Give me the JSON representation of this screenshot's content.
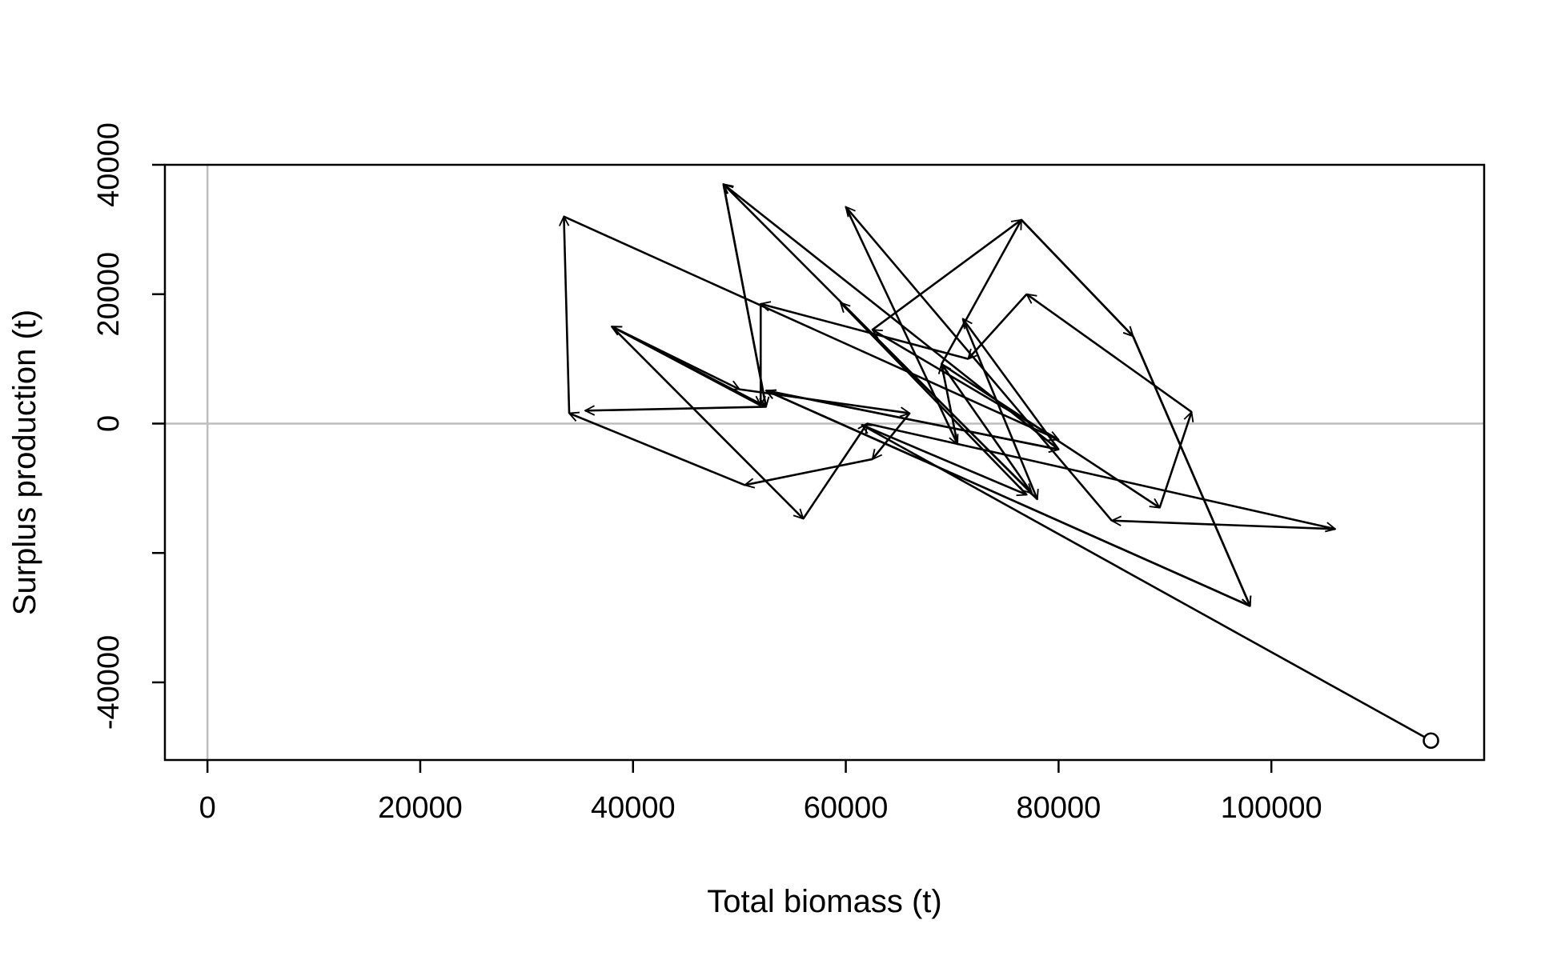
{
  "chart_data": {
    "type": "line",
    "xlabel": "Total biomass (t)",
    "ylabel": "Surplus production (t)",
    "xlim": [
      -4000,
      120000
    ],
    "ylim": [
      -52000,
      40000
    ],
    "x_ticks": [
      0,
      20000,
      40000,
      60000,
      80000,
      100000
    ],
    "x_tick_labels": [
      "0",
      "20000",
      "40000",
      "60000",
      "80000",
      "100000"
    ],
    "y_ticks": [
      -40000,
      -20000,
      0,
      20000,
      40000
    ],
    "y_tick_labels": [
      "-40000",
      "",
      "0",
      "20000",
      "40000"
    ],
    "reference_lines": {
      "x": 0,
      "y": 0
    },
    "colors": {
      "reference_line": "#bebebe",
      "path": "#000000",
      "frame": "#000000"
    },
    "start_marker": "open-circle",
    "series": [
      {
        "style": "arrows",
        "points": [
          {
            "x": 115000,
            "y": -49000
          },
          {
            "x": 61500,
            "y": -200
          },
          {
            "x": 77000,
            "y": -11000
          },
          {
            "x": 59500,
            "y": 18700
          },
          {
            "x": 77500,
            "y": -10800
          },
          {
            "x": 69000,
            "y": 9200
          },
          {
            "x": 76500,
            "y": 31500
          },
          {
            "x": 87000,
            "y": 13500
          },
          {
            "x": 98000,
            "y": -28200
          },
          {
            "x": 52500,
            "y": 5100
          },
          {
            "x": 80000,
            "y": -4000
          },
          {
            "x": 71000,
            "y": 16200
          },
          {
            "x": 78000,
            "y": -11700
          },
          {
            "x": 48500,
            "y": 37000
          },
          {
            "x": 52500,
            "y": 2600
          },
          {
            "x": 38000,
            "y": 15000
          },
          {
            "x": 56000,
            "y": -14700
          },
          {
            "x": 62000,
            "y": 0
          },
          {
            "x": 106000,
            "y": -16300
          },
          {
            "x": 85000,
            "y": -15000
          },
          {
            "x": 60000,
            "y": 33500
          },
          {
            "x": 70500,
            "y": -3200
          },
          {
            "x": 69000,
            "y": 9200
          },
          {
            "x": 89500,
            "y": -13000
          },
          {
            "x": 92500,
            "y": 1800
          },
          {
            "x": 77000,
            "y": 20000
          },
          {
            "x": 71500,
            "y": 10000
          },
          {
            "x": 52000,
            "y": 18500
          },
          {
            "x": 52000,
            "y": 2800
          },
          {
            "x": 38000,
            "y": 15000
          },
          {
            "x": 50000,
            "y": 5300
          },
          {
            "x": 66000,
            "y": 1600
          },
          {
            "x": 62500,
            "y": -5500
          },
          {
            "x": 50500,
            "y": -9500
          },
          {
            "x": 34000,
            "y": 1600
          },
          {
            "x": 33500,
            "y": 32000
          },
          {
            "x": 80000,
            "y": -2500
          },
          {
            "x": 62500,
            "y": 14500
          },
          {
            "x": 76500,
            "y": 31500
          },
          {
            "x": 87000,
            "y": 13500
          },
          {
            "x": 98000,
            "y": -28200
          },
          {
            "x": 52500,
            "y": 5100
          },
          {
            "x": 80000,
            "y": -4000
          },
          {
            "x": 48500,
            "y": 37000
          },
          {
            "x": 52500,
            "y": 2600
          },
          {
            "x": 35500,
            "y": 2000
          }
        ]
      }
    ]
  }
}
